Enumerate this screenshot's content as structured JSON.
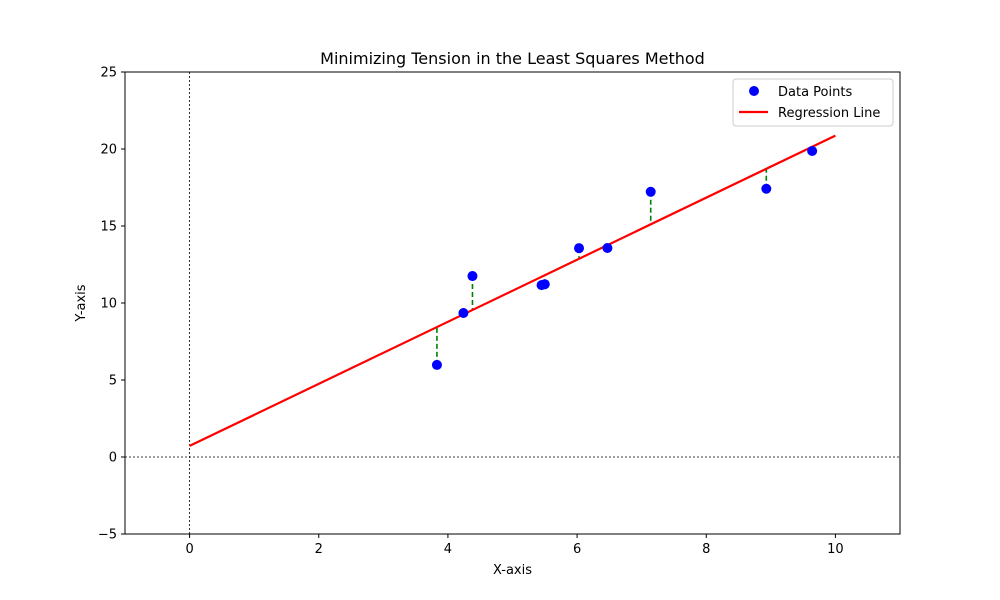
{
  "chart_data": {
    "type": "scatter",
    "title": "Minimizing Tension in the Least Squares Method",
    "xlabel": "X-axis",
    "ylabel": "Y-axis",
    "xlim": [
      -1,
      11
    ],
    "ylim": [
      -5,
      25
    ],
    "x_ticks": [
      0,
      2,
      4,
      6,
      8,
      10
    ],
    "y_ticks": [
      -5,
      0,
      5,
      10,
      15,
      20,
      25
    ],
    "y_tick_labels": [
      "−5",
      "0",
      "5",
      "10",
      "15",
      "20",
      "25"
    ],
    "grid": false,
    "reference_lines": {
      "x": 0,
      "y": 0,
      "style": "dotted"
    },
    "legend": {
      "position": "top-right",
      "entries": [
        "Data Points",
        "Regression Line"
      ]
    },
    "series": [
      {
        "name": "Data Points",
        "kind": "scatter",
        "color": "#0000ff",
        "points": [
          {
            "x": 3.83,
            "y": 5.98
          },
          {
            "x": 4.24,
            "y": 9.35
          },
          {
            "x": 4.38,
            "y": 11.75
          },
          {
            "x": 5.45,
            "y": 11.16
          },
          {
            "x": 5.5,
            "y": 11.22
          },
          {
            "x": 6.03,
            "y": 13.56
          },
          {
            "x": 6.47,
            "y": 13.57
          },
          {
            "x": 7.14,
            "y": 17.22
          },
          {
            "x": 8.93,
            "y": 17.42
          },
          {
            "x": 9.64,
            "y": 19.87
          }
        ]
      },
      {
        "name": "Regression Line",
        "kind": "line",
        "color": "#ff0000",
        "points": [
          {
            "x": 0,
            "y": 0.72
          },
          {
            "x": 10,
            "y": 20.87
          }
        ]
      }
    ],
    "residuals": {
      "color": "#008000",
      "style": "dashed"
    }
  }
}
